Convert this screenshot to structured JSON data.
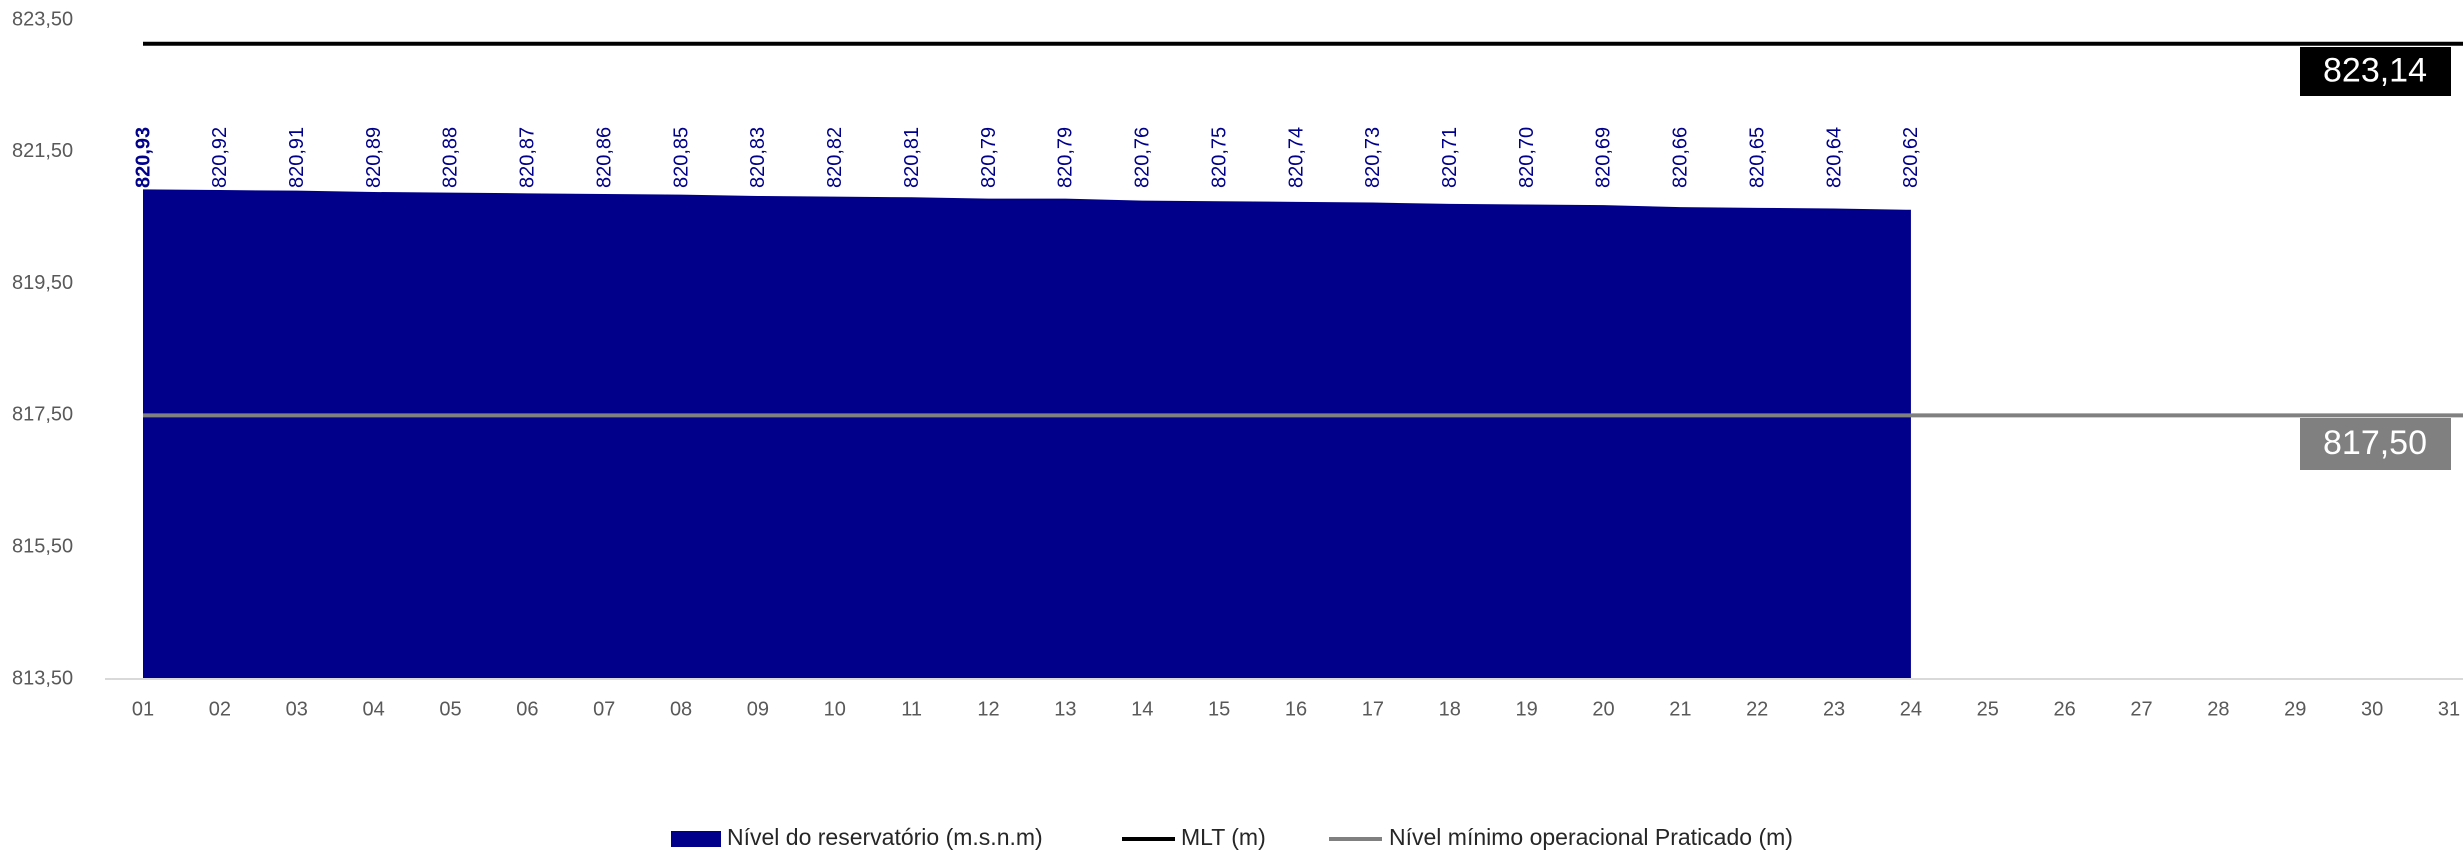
{
  "chart_data": {
    "type": "area",
    "categories": [
      "01",
      "02",
      "03",
      "04",
      "05",
      "06",
      "07",
      "08",
      "09",
      "10",
      "11",
      "12",
      "13",
      "14",
      "15",
      "16",
      "17",
      "18",
      "19",
      "20",
      "21",
      "22",
      "23",
      "24",
      "25",
      "26",
      "27",
      "28",
      "29",
      "30",
      "31"
    ],
    "series": [
      {
        "name": "Nível do reservatório (m.s.n.m)",
        "color": "#00008b",
        "values": [
          820.93,
          820.92,
          820.91,
          820.89,
          820.88,
          820.87,
          820.86,
          820.85,
          820.83,
          820.82,
          820.81,
          820.79,
          820.79,
          820.76,
          820.75,
          820.74,
          820.73,
          820.71,
          820.7,
          820.69,
          820.66,
          820.65,
          820.64,
          820.62,
          null,
          null,
          null,
          null,
          null,
          null,
          null
        ],
        "value_labels": [
          "820,93",
          "820,92",
          "820,91",
          "820,89",
          "820,88",
          "820,87",
          "820,86",
          "820,85",
          "820,83",
          "820,82",
          "820,81",
          "820,79",
          "820,79",
          "820,76",
          "820,75",
          "820,74",
          "820,73",
          "820,71",
          "820,70",
          "820,69",
          "820,66",
          "820,65",
          "820,64",
          "820,62",
          null,
          null,
          null,
          null,
          null,
          null,
          null
        ]
      },
      {
        "name": "MLT (m)",
        "color": "#000000",
        "value": 823.14,
        "value_label": "823,14"
      },
      {
        "name": "Nível mínimo operacional Praticado (m)",
        "color": "#808080",
        "value": 817.5,
        "value_label": "817,50"
      }
    ],
    "ylim": [
      813.5,
      823.5
    ],
    "yticks": [
      {
        "value": 813.5,
        "label": "813,50"
      },
      {
        "value": 815.5,
        "label": "815,50"
      },
      {
        "value": 817.5,
        "label": "817,50"
      },
      {
        "value": 819.5,
        "label": "819,50"
      },
      {
        "value": 821.5,
        "label": "821,50"
      },
      {
        "value": 823.5,
        "label": "823,50"
      }
    ],
    "grid": false
  }
}
